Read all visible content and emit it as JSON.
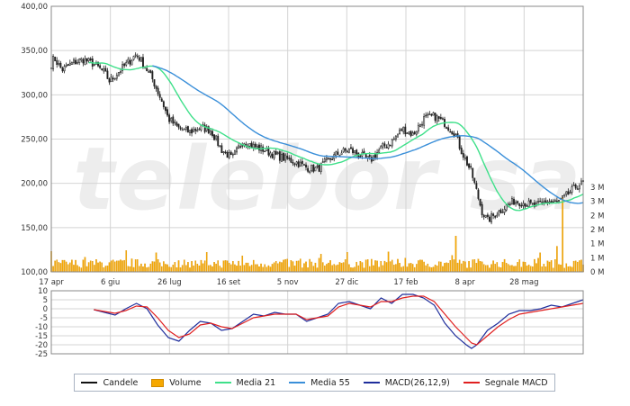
{
  "chart_data": [
    {
      "type": "candlestick",
      "title": "",
      "xlabel": "",
      "ylabel": "",
      "ylim": [
        100,
        400
      ],
      "yticks": [
        "400,00",
        "350,00",
        "300,00",
        "250,00",
        "200,00",
        "150,00",
        "100,00"
      ],
      "xticks": [
        "17 apr",
        "6 giu",
        "26 lug",
        "16 set",
        "5 nov",
        "27 dic",
        "17 feb",
        "8 apr",
        "28 mag"
      ],
      "volume_axis": {
        "range": [
          0,
          3.3
        ],
        "unit": "M",
        "ticks": [
          "3 M",
          "3 M",
          "2 M",
          "2 M",
          "1 M",
          "1 M",
          "0 M"
        ]
      },
      "grid": true,
      "watermark": "telebor sa",
      "close_anchors": [
        [
          0,
          335
        ],
        [
          0.5,
          342
        ],
        [
          2,
          328
        ],
        [
          4,
          336
        ],
        [
          6,
          340
        ],
        [
          8,
          335
        ],
        [
          10,
          325
        ],
        [
          11,
          315
        ],
        [
          12,
          322
        ],
        [
          14,
          334
        ],
        [
          16,
          346
        ],
        [
          17,
          338
        ],
        [
          19,
          318
        ],
        [
          21,
          290
        ],
        [
          22,
          273
        ],
        [
          24,
          262
        ],
        [
          26,
          258
        ],
        [
          28,
          263
        ],
        [
          30,
          260
        ],
        [
          32,
          238
        ],
        [
          34,
          228
        ],
        [
          36,
          248
        ],
        [
          38,
          242
        ],
        [
          40,
          238
        ],
        [
          42,
          232
        ],
        [
          44,
          228
        ],
        [
          46,
          224
        ],
        [
          48,
          218
        ],
        [
          50,
          216
        ],
        [
          52,
          226
        ],
        [
          54,
          234
        ],
        [
          56,
          238
        ],
        [
          58,
          232
        ],
        [
          60,
          226
        ],
        [
          62,
          240
        ],
        [
          64,
          247
        ],
        [
          66,
          262
        ],
        [
          68,
          255
        ],
        [
          70,
          273
        ],
        [
          72,
          276
        ],
        [
          74,
          268
        ],
        [
          76,
          255
        ],
        [
          77,
          238
        ],
        [
          79,
          212
        ],
        [
          80,
          190
        ],
        [
          81,
          168
        ],
        [
          82,
          158
        ],
        [
          83,
          163
        ],
        [
          85,
          172
        ],
        [
          87,
          180
        ],
        [
          89,
          178
        ],
        [
          91,
          174
        ],
        [
          92,
          177
        ],
        [
          93,
          180
        ],
        [
          95,
          178
        ],
        [
          96,
          182
        ],
        [
          97,
          187
        ],
        [
          99,
          198
        ],
        [
          100,
          200
        ]
      ],
      "series": [
        {
          "name": "Media 21",
          "color": "#3fe08a"
        },
        {
          "name": "Media 55",
          "color": "#3a8fd9"
        }
      ],
      "notable_volume_spikes": [
        {
          "x": 76,
          "value": 1.4
        },
        {
          "x": 96,
          "value": 2.9
        },
        {
          "x": 95,
          "value": 1.0
        }
      ]
    },
    {
      "type": "line",
      "title": "",
      "ylim": [
        -25,
        10
      ],
      "yticks": [
        "10",
        "5",
        "0",
        "-5",
        "-10",
        "-15",
        "-20",
        "-25"
      ],
      "series": [
        {
          "name": "MACD(26,12,9)",
          "color": "#1f2e9c",
          "anchors": [
            [
              8,
              -0.5
            ],
            [
              10,
              -2
            ],
            [
              12,
              -3.5
            ],
            [
              14,
              0
            ],
            [
              16,
              3
            ],
            [
              18,
              0
            ],
            [
              20,
              -9
            ],
            [
              22,
              -16
            ],
            [
              24,
              -18
            ],
            [
              26,
              -12
            ],
            [
              28,
              -7
            ],
            [
              30,
              -8
            ],
            [
              32,
              -12
            ],
            [
              34,
              -11
            ],
            [
              36,
              -7
            ],
            [
              38,
              -3
            ],
            [
              40,
              -4
            ],
            [
              42,
              -2
            ],
            [
              44,
              -3
            ],
            [
              46,
              -3
            ],
            [
              48,
              -7
            ],
            [
              50,
              -5
            ],
            [
              52,
              -3
            ],
            [
              54,
              3
            ],
            [
              56,
              4
            ],
            [
              58,
              2
            ],
            [
              60,
              0
            ],
            [
              62,
              6
            ],
            [
              64,
              3
            ],
            [
              66,
              8
            ],
            [
              68,
              8
            ],
            [
              70,
              6
            ],
            [
              72,
              2
            ],
            [
              74,
              -8
            ],
            [
              76,
              -15
            ],
            [
              78,
              -20
            ],
            [
              79,
              -22
            ],
            [
              80,
              -20
            ],
            [
              82,
              -12
            ],
            [
              84,
              -8
            ],
            [
              86,
              -3
            ],
            [
              88,
              -1
            ],
            [
              90,
              -1
            ],
            [
              92,
              0
            ],
            [
              94,
              2
            ],
            [
              96,
              1
            ],
            [
              98,
              3
            ],
            [
              100,
              5
            ]
          ]
        },
        {
          "name": "Segnale MACD",
          "color": "#e02020",
          "anchors": [
            [
              8,
              -0.5
            ],
            [
              10,
              -1.5
            ],
            [
              12,
              -2.5
            ],
            [
              14,
              -1
            ],
            [
              16,
              1.5
            ],
            [
              18,
              1
            ],
            [
              20,
              -5
            ],
            [
              22,
              -12
            ],
            [
              24,
              -16
            ],
            [
              26,
              -14
            ],
            [
              28,
              -9
            ],
            [
              30,
              -8
            ],
            [
              32,
              -10
            ],
            [
              34,
              -11
            ],
            [
              36,
              -8
            ],
            [
              38,
              -5
            ],
            [
              40,
              -4
            ],
            [
              42,
              -3
            ],
            [
              44,
              -3
            ],
            [
              46,
              -3
            ],
            [
              48,
              -6
            ],
            [
              50,
              -5
            ],
            [
              52,
              -4
            ],
            [
              54,
              1
            ],
            [
              56,
              3
            ],
            [
              58,
              2
            ],
            [
              60,
              1
            ],
            [
              62,
              4
            ],
            [
              64,
              4
            ],
            [
              66,
              6
            ],
            [
              68,
              7
            ],
            [
              70,
              7
            ],
            [
              72,
              4
            ],
            [
              74,
              -3
            ],
            [
              76,
              -10
            ],
            [
              78,
              -16
            ],
            [
              79,
              -19
            ],
            [
              80,
              -20
            ],
            [
              82,
              -15
            ],
            [
              84,
              -10
            ],
            [
              86,
              -6
            ],
            [
              88,
              -3
            ],
            [
              90,
              -2
            ],
            [
              92,
              -1
            ],
            [
              94,
              0
            ],
            [
              96,
              1
            ],
            [
              98,
              2
            ],
            [
              100,
              3
            ]
          ]
        }
      ]
    }
  ],
  "legend": {
    "items": [
      {
        "label": "Candele",
        "color": "#111111",
        "kind": "line"
      },
      {
        "label": "Volume",
        "color": "#f6a800",
        "kind": "box"
      },
      {
        "label": "Media 21",
        "color": "#3fe08a",
        "kind": "line"
      },
      {
        "label": "Media 55",
        "color": "#3a8fd9",
        "kind": "line"
      },
      {
        "label": "MACD(26,12,9)",
        "color": "#1f2e9c",
        "kind": "line"
      },
      {
        "label": "Segnale MACD",
        "color": "#e02020",
        "kind": "line"
      }
    ]
  },
  "colors": {
    "grid": "#d4d4d4",
    "axis": "#888888",
    "candle_up": "#ffffff",
    "candle_down": "#222222",
    "volume": "#f6a800",
    "watermark": "#ededed"
  }
}
